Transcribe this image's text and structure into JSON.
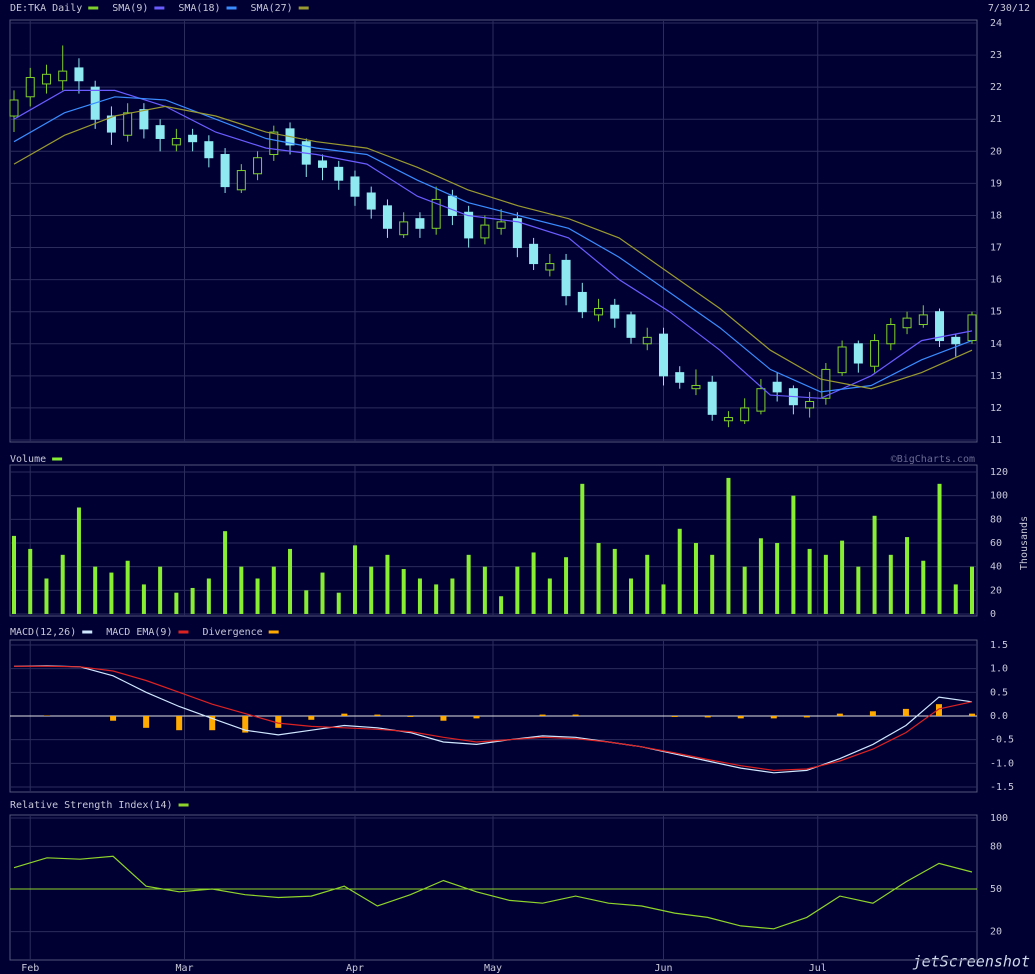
{
  "header": {
    "date": "7/30/12",
    "copyright": "©BigCharts.com",
    "watermark": "jetScreenshot"
  },
  "chart_data": [
    {
      "type": "candlestick",
      "title": "DE:TKA Daily",
      "color": "#7fd02a",
      "down_color": "#8eeaf0",
      "open": [
        21.1,
        21.7,
        22.1,
        22.2,
        22.6,
        22.0,
        21.1,
        20.5,
        21.3,
        20.8,
        20.2,
        20.5,
        20.3,
        19.9,
        18.8,
        19.3,
        19.9,
        20.7,
        20.3,
        19.7,
        19.5,
        19.2,
        18.7,
        18.3,
        17.4,
        17.9,
        17.6,
        18.6,
        18.1,
        17.3,
        17.6,
        17.9,
        17.1,
        16.3,
        16.6,
        15.6,
        14.9,
        15.2,
        14.9,
        14.0,
        14.3,
        13.1,
        12.6,
        12.8,
        11.6,
        11.6,
        11.9,
        12.8,
        12.6,
        12.0,
        12.3,
        13.1,
        14.0,
        13.3,
        14.0,
        14.5,
        14.6,
        15.0,
        14.2,
        14.1
      ],
      "high": [
        21.9,
        22.6,
        22.7,
        23.3,
        22.9,
        22.2,
        21.4,
        21.5,
        21.5,
        21.0,
        20.7,
        20.7,
        20.5,
        20.1,
        19.6,
        20.0,
        20.8,
        20.9,
        20.4,
        19.9,
        19.7,
        19.4,
        18.9,
        18.5,
        18.1,
        18.1,
        18.9,
        18.8,
        18.3,
        18.0,
        18.2,
        18.1,
        17.3,
        16.8,
        16.8,
        15.9,
        15.4,
        15.4,
        15.0,
        14.5,
        14.5,
        13.3,
        13.2,
        13.0,
        11.9,
        12.3,
        12.9,
        13.1,
        12.7,
        12.5,
        13.4,
        14.1,
        14.1,
        14.3,
        14.8,
        15.0,
        15.2,
        15.1,
        14.3,
        15.0
      ],
      "low": [
        20.6,
        21.4,
        21.8,
        21.9,
        21.8,
        20.7,
        20.2,
        20.3,
        20.4,
        20.0,
        20.0,
        20.0,
        19.5,
        18.7,
        18.7,
        19.1,
        19.7,
        19.9,
        19.2,
        19.1,
        18.8,
        18.3,
        17.9,
        17.3,
        17.3,
        17.3,
        17.4,
        17.7,
        17.0,
        17.1,
        17.4,
        16.7,
        16.3,
        16.1,
        15.2,
        14.8,
        14.7,
        14.5,
        14.0,
        13.8,
        12.7,
        12.6,
        12.4,
        11.6,
        11.4,
        11.5,
        11.8,
        12.2,
        11.8,
        11.7,
        12.1,
        13.0,
        13.1,
        13.1,
        13.8,
        14.3,
        14.5,
        13.9,
        13.6,
        14.0
      ],
      "close": [
        21.6,
        22.3,
        22.4,
        22.5,
        22.2,
        21.0,
        20.6,
        21.2,
        20.7,
        20.4,
        20.4,
        20.3,
        19.8,
        18.9,
        19.4,
        19.8,
        20.6,
        20.2,
        19.6,
        19.5,
        19.1,
        18.6,
        18.2,
        17.6,
        17.8,
        17.6,
        18.5,
        18.0,
        17.3,
        17.7,
        17.8,
        17.0,
        16.5,
        16.5,
        15.5,
        15.0,
        15.1,
        14.8,
        14.2,
        14.2,
        13.0,
        12.8,
        12.7,
        11.8,
        11.7,
        12.0,
        12.6,
        12.5,
        12.1,
        12.2,
        13.2,
        13.9,
        13.4,
        14.1,
        14.6,
        14.8,
        14.9,
        14.1,
        14.0,
        14.9
      ],
      "series": [
        {
          "name": "SMA(9)",
          "color": "#6a5cff",
          "values": [
            21.0,
            21.9,
            21.9,
            21.4,
            20.6,
            20.1,
            19.9,
            19.6,
            18.6,
            18.0,
            17.8,
            17.3,
            16.0,
            15.0,
            13.8,
            12.4,
            12.3,
            13.0,
            14.1,
            14.4
          ]
        },
        {
          "name": "SMA(18)",
          "color": "#3a8cff",
          "values": [
            20.3,
            21.2,
            21.7,
            21.6,
            21.0,
            20.4,
            20.1,
            19.9,
            19.1,
            18.4,
            18.0,
            17.6,
            16.7,
            15.6,
            14.5,
            13.2,
            12.5,
            12.7,
            13.5,
            14.1
          ]
        },
        {
          "name": "SMA(27)",
          "color": "#9a9a30",
          "values": [
            19.6,
            20.5,
            21.1,
            21.4,
            21.1,
            20.6,
            20.3,
            20.1,
            19.5,
            18.8,
            18.3,
            17.9,
            17.3,
            16.2,
            15.1,
            13.8,
            12.9,
            12.6,
            13.1,
            13.8
          ]
        }
      ],
      "ylim": [
        11,
        24
      ],
      "yticks": [
        11,
        12,
        13,
        14,
        15,
        16,
        17,
        18,
        19,
        20,
        21,
        22,
        23,
        24
      ]
    },
    {
      "type": "bar",
      "title": "Volume",
      "color": "#88ee33",
      "ylabel": "Thousands",
      "values": [
        66,
        55,
        30,
        50,
        90,
        40,
        35,
        45,
        25,
        40,
        18,
        22,
        30,
        70,
        40,
        30,
        40,
        55,
        20,
        35,
        18,
        58,
        40,
        50,
        38,
        30,
        25,
        30,
        50,
        40,
        15,
        40,
        52,
        30,
        48,
        110,
        60,
        55,
        30,
        50,
        25,
        72,
        60,
        50,
        115,
        40,
        64,
        60,
        100,
        55,
        50,
        62,
        40,
        83,
        50,
        65,
        45,
        110,
        25,
        40
      ],
      "ylim": [
        0,
        120
      ],
      "yticks": [
        0,
        20,
        40,
        60,
        80,
        100,
        120
      ]
    },
    {
      "type": "line",
      "series": [
        {
          "name": "MACD(12,26)",
          "color": "#d0e8ff",
          "values": [
            1.05,
            1.06,
            1.04,
            0.85,
            0.5,
            0.2,
            -0.05,
            -0.3,
            -0.4,
            -0.3,
            -0.2,
            -0.25,
            -0.35,
            -0.55,
            -0.6,
            -0.5,
            -0.42,
            -0.45,
            -0.55,
            -0.65,
            -0.8,
            -0.95,
            -1.1,
            -1.2,
            -1.15,
            -0.9,
            -0.6,
            -0.2,
            0.4,
            0.3
          ]
        },
        {
          "name": "MACD EMA(9)",
          "color": "#dd2222",
          "values": [
            1.05,
            1.05,
            1.04,
            0.95,
            0.75,
            0.5,
            0.25,
            0.05,
            -0.15,
            -0.22,
            -0.25,
            -0.28,
            -0.33,
            -0.45,
            -0.55,
            -0.5,
            -0.45,
            -0.48,
            -0.55,
            -0.65,
            -0.78,
            -0.92,
            -1.05,
            -1.15,
            -1.12,
            -0.95,
            -0.7,
            -0.35,
            0.15,
            0.3
          ]
        },
        {
          "name": "Divergence",
          "color": "#ffaa00",
          "style": "bar",
          "values": [
            0,
            0.01,
            0,
            -0.1,
            -0.25,
            -0.3,
            -0.3,
            -0.35,
            -0.25,
            -0.08,
            0.05,
            0.03,
            -0.02,
            -0.1,
            -0.05,
            0,
            0.03,
            0.03,
            0,
            0,
            -0.02,
            -0.03,
            -0.05,
            -0.05,
            -0.03,
            0.05,
            0.1,
            0.15,
            0.25,
            0.05
          ]
        }
      ],
      "ylim": [
        -1.5,
        1.5
      ],
      "yticks": [
        {
          "value": 1.5,
          "label": "1.5"
        },
        {
          "value": 1,
          "label": "1.0"
        },
        {
          "value": 0.5,
          "label": "0.5"
        },
        {
          "value": 0,
          "label": "0.0"
        },
        {
          "value": -0.5,
          "label": "-0.5"
        },
        {
          "value": -1,
          "label": "-1.0"
        },
        {
          "value": -1.5,
          "label": "-1.5"
        }
      ]
    },
    {
      "type": "line",
      "title": "Relative Strength Index(14)",
      "color": "#8fd42a",
      "reference_line": 50,
      "values": [
        65,
        72,
        71,
        73,
        52,
        48,
        50,
        46,
        44,
        45,
        52,
        38,
        46,
        56,
        48,
        42,
        40,
        45,
        40,
        38,
        33,
        30,
        24,
        22,
        30,
        45,
        40,
        55,
        68,
        62
      ],
      "ylim": [
        0,
        100
      ],
      "yticks": [
        20,
        50,
        80,
        100
      ],
      "xlim": [
        0,
        59
      ],
      "xticks": [
        {
          "value": 1,
          "label": "Feb"
        },
        {
          "value": 10.5,
          "label": "Mar"
        },
        {
          "value": 21,
          "label": "Apr"
        },
        {
          "value": 29.5,
          "label": "May"
        },
        {
          "value": 40,
          "label": "Jun"
        },
        {
          "value": 49.5,
          "label": "Jul"
        }
      ]
    }
  ]
}
